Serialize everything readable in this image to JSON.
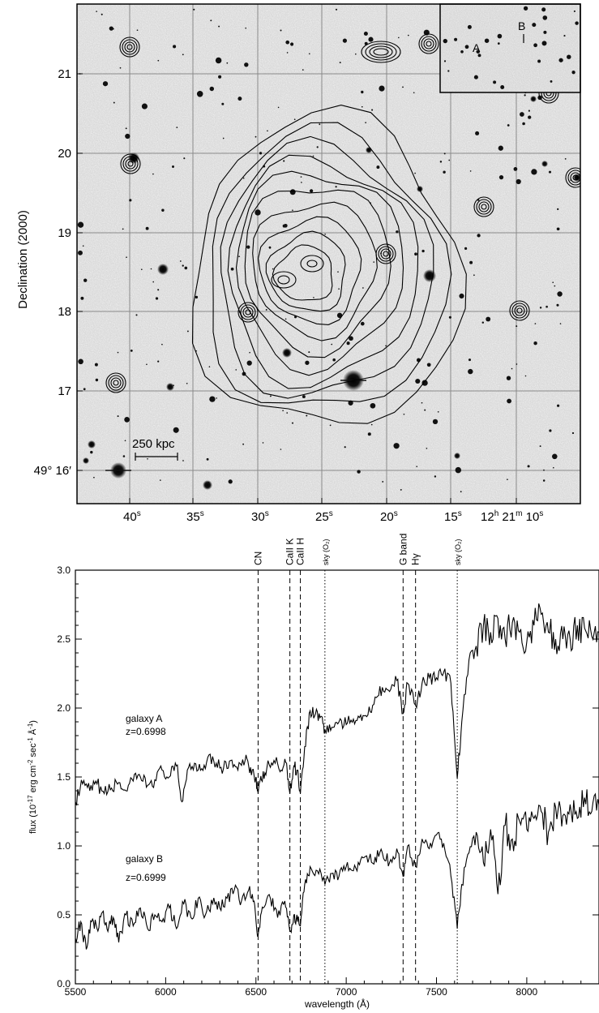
{
  "chart_data": [
    {
      "type": "image",
      "ylabel": "Declination (2000)",
      "x_ticks": [
        {
          "main": "40",
          "sup": "s"
        },
        {
          "main": "35",
          "sup": "s"
        },
        {
          "main": "30",
          "sup": "s"
        },
        {
          "main": "25",
          "sup": "s"
        },
        {
          "main": "20",
          "sup": "s"
        },
        {
          "main": "15",
          "sup": "s"
        },
        {
          "main": "12",
          "sup": "h",
          "main2": " 21",
          "sup2": "m",
          "main3": " 10",
          "sup3": "s"
        }
      ],
      "y_ticks": [
        "21",
        "20",
        "19",
        "18",
        "17",
        "49° 16′"
      ],
      "scale_bar_label": "250 kpc",
      "inset_labels": [
        "A",
        "B"
      ]
    },
    {
      "type": "line",
      "xlabel": "wavelength (Å)",
      "ylabel_main": "flux (10",
      "ylabel_sup": "-17",
      "ylabel_rest": " erg cm",
      "ylabel_sup2": "-2",
      "ylabel_rest2": " sec",
      "ylabel_sup3": "-1",
      "ylabel_rest3": " Å",
      "ylabel_sup4": "-1",
      "ylabel_end": ")",
      "xlim": [
        5500,
        8400
      ],
      "ylim": [
        0.0,
        3.0
      ],
      "x_ticks": [
        5500,
        6000,
        6500,
        7000,
        7500,
        8000
      ],
      "x_tick_labels": [
        "5500",
        "6000",
        "6500",
        "7000",
        "7500",
        "8000"
      ],
      "y_ticks": [
        0.0,
        0.5,
        1.0,
        1.5,
        2.0,
        2.5,
        3.0
      ],
      "y_tick_labels": [
        "0.0",
        "0.5",
        "1.0",
        "1.5",
        "2.0",
        "2.5",
        "3.0"
      ],
      "lines": [
        {
          "label": "CN",
          "x": 6512,
          "style": "dashed"
        },
        {
          "label": "CaII K",
          "x": 6688,
          "style": "dashed"
        },
        {
          "label": "CaII H",
          "x": 6746,
          "style": "dashed"
        },
        {
          "label": "sky (O₂)",
          "x": 6882,
          "style": "dotted",
          "small": true
        },
        {
          "label": "G band",
          "x": 7315,
          "style": "dashed"
        },
        {
          "label": "Hγ",
          "x": 7384,
          "style": "dashed"
        },
        {
          "label": "sky (O₂)",
          "x": 7615,
          "style": "dotted",
          "small": true
        }
      ],
      "series": [
        {
          "name": "galaxy A",
          "name2": "z=0.6998",
          "points": [
            [
              5500,
              1.32
            ],
            [
              5540,
              1.45
            ],
            [
              5580,
              1.4
            ],
            [
              5620,
              1.45
            ],
            [
              5660,
              1.38
            ],
            [
              5700,
              1.42
            ],
            [
              5740,
              1.46
            ],
            [
              5780,
              1.4
            ],
            [
              5820,
              1.47
            ],
            [
              5860,
              1.5
            ],
            [
              5900,
              1.44
            ],
            [
              5940,
              1.48
            ],
            [
              5980,
              1.55
            ],
            [
              6020,
              1.5
            ],
            [
              6060,
              1.58
            ],
            [
              6090,
              1.32
            ],
            [
              6120,
              1.55
            ],
            [
              6160,
              1.6
            ],
            [
              6200,
              1.56
            ],
            [
              6240,
              1.66
            ],
            [
              6280,
              1.6
            ],
            [
              6320,
              1.56
            ],
            [
              6360,
              1.62
            ],
            [
              6400,
              1.55
            ],
            [
              6440,
              1.62
            ],
            [
              6470,
              1.57
            ],
            [
              6500,
              1.5
            ],
            [
              6512,
              1.38
            ],
            [
              6530,
              1.48
            ],
            [
              6560,
              1.56
            ],
            [
              6600,
              1.62
            ],
            [
              6640,
              1.55
            ],
            [
              6670,
              1.6
            ],
            [
              6688,
              1.38
            ],
            [
              6710,
              1.58
            ],
            [
              6730,
              1.55
            ],
            [
              6746,
              1.38
            ],
            [
              6770,
              1.72
            ],
            [
              6800,
              1.98
            ],
            [
              6830,
              1.96
            ],
            [
              6860,
              1.94
            ],
            [
              6882,
              1.84
            ],
            [
              6920,
              1.86
            ],
            [
              6960,
              1.9
            ],
            [
              7000,
              1.88
            ],
            [
              7040,
              1.92
            ],
            [
              7080,
              1.95
            ],
            [
              7120,
              1.95
            ],
            [
              7160,
              2.08
            ],
            [
              7200,
              2.15
            ],
            [
              7240,
              2.12
            ],
            [
              7280,
              2.2
            ],
            [
              7315,
              1.96
            ],
            [
              7340,
              2.18
            ],
            [
              7384,
              2.02
            ],
            [
              7420,
              2.18
            ],
            [
              7460,
              2.22
            ],
            [
              7500,
              2.22
            ],
            [
              7540,
              2.26
            ],
            [
              7580,
              2.18
            ],
            [
              7615,
              1.49
            ],
            [
              7640,
              1.9
            ],
            [
              7680,
              2.35
            ],
            [
              7720,
              2.45
            ],
            [
              7760,
              2.6
            ],
            [
              7800,
              2.55
            ],
            [
              7840,
              2.65
            ],
            [
              7880,
              2.5
            ],
            [
              7920,
              2.62
            ],
            [
              7960,
              2.55
            ],
            [
              8000,
              2.48
            ],
            [
              8040,
              2.6
            ],
            [
              8080,
              2.68
            ],
            [
              8120,
              2.55
            ],
            [
              8160,
              2.5
            ],
            [
              8200,
              2.5
            ],
            [
              8240,
              2.5
            ],
            [
              8280,
              2.6
            ],
            [
              8320,
              2.58
            ],
            [
              8360,
              2.52
            ],
            [
              8400,
              2.55
            ]
          ]
        },
        {
          "name": "galaxy B",
          "name2": "z=0.6999",
          "points": [
            [
              5500,
              0.33
            ],
            [
              5530,
              0.45
            ],
            [
              5560,
              0.25
            ],
            [
              5590,
              0.45
            ],
            [
              5620,
              0.4
            ],
            [
              5650,
              0.52
            ],
            [
              5680,
              0.38
            ],
            [
              5710,
              0.48
            ],
            [
              5740,
              0.3
            ],
            [
              5780,
              0.5
            ],
            [
              5820,
              0.42
            ],
            [
              5860,
              0.55
            ],
            [
              5900,
              0.4
            ],
            [
              5940,
              0.5
            ],
            [
              5980,
              0.45
            ],
            [
              6020,
              0.55
            ],
            [
              6060,
              0.4
            ],
            [
              6100,
              0.58
            ],
            [
              6140,
              0.48
            ],
            [
              6180,
              0.62
            ],
            [
              6220,
              0.5
            ],
            [
              6260,
              0.58
            ],
            [
              6300,
              0.55
            ],
            [
              6340,
              0.62
            ],
            [
              6380,
              0.68
            ],
            [
              6420,
              0.6
            ],
            [
              6460,
              0.68
            ],
            [
              6490,
              0.6
            ],
            [
              6512,
              0.35
            ],
            [
              6540,
              0.55
            ],
            [
              6580,
              0.62
            ],
            [
              6620,
              0.48
            ],
            [
              6660,
              0.6
            ],
            [
              6688,
              0.38
            ],
            [
              6710,
              0.5
            ],
            [
              6730,
              0.45
            ],
            [
              6746,
              0.42
            ],
            [
              6770,
              0.72
            ],
            [
              6800,
              0.85
            ],
            [
              6840,
              0.82
            ],
            [
              6882,
              0.72
            ],
            [
              6920,
              0.8
            ],
            [
              6960,
              0.78
            ],
            [
              7000,
              0.85
            ],
            [
              7040,
              0.82
            ],
            [
              7080,
              0.9
            ],
            [
              7120,
              0.88
            ],
            [
              7160,
              0.92
            ],
            [
              7200,
              0.95
            ],
            [
              7240,
              0.88
            ],
            [
              7280,
              0.98
            ],
            [
              7315,
              0.78
            ],
            [
              7340,
              1.0
            ],
            [
              7384,
              0.85
            ],
            [
              7420,
              1.05
            ],
            [
              7460,
              0.98
            ],
            [
              7500,
              1.08
            ],
            [
              7540,
              1.02
            ],
            [
              7580,
              0.78
            ],
            [
              7615,
              0.4
            ],
            [
              7640,
              0.72
            ],
            [
              7680,
              0.95
            ],
            [
              7720,
              1.1
            ],
            [
              7760,
              0.88
            ],
            [
              7800,
              1.12
            ],
            [
              7840,
              0.65
            ],
            [
              7880,
              1.15
            ],
            [
              7920,
              1.05
            ],
            [
              7960,
              1.18
            ],
            [
              8000,
              1.12
            ],
            [
              8040,
              1.2
            ],
            [
              8080,
              1.25
            ],
            [
              8120,
              1.1
            ],
            [
              8160,
              1.28
            ],
            [
              8200,
              1.22
            ],
            [
              8240,
              1.3
            ],
            [
              8280,
              1.2
            ],
            [
              8320,
              1.35
            ],
            [
              8360,
              1.25
            ],
            [
              8400,
              1.3
            ]
          ]
        }
      ]
    }
  ],
  "colors": {
    "image_bg": "#d4d4d4",
    "grid": "#8a8a8a",
    "ink": "#000000"
  }
}
